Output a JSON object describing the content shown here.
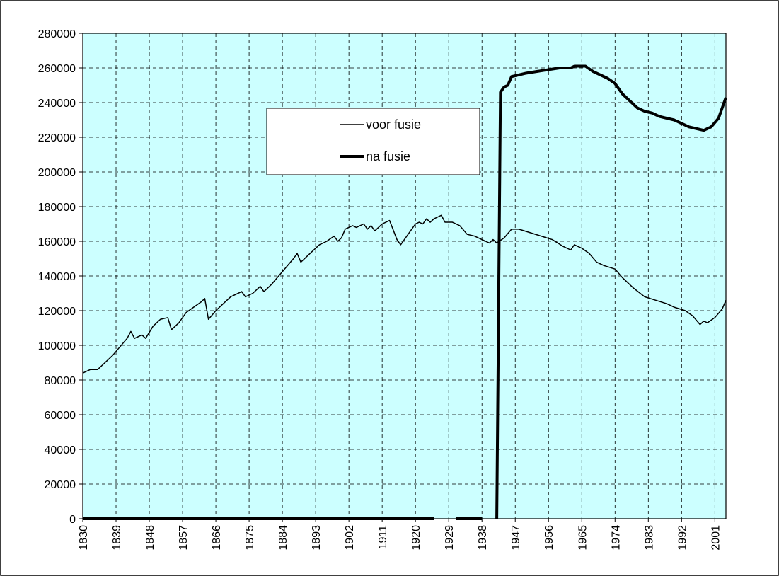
{
  "chart_data": {
    "type": "line",
    "xlim": [
      1830,
      2004
    ],
    "xticks": [
      1830,
      1839,
      1848,
      1857,
      1866,
      1875,
      1884,
      1893,
      1902,
      1911,
      1920,
      1929,
      1938,
      1947,
      1956,
      1965,
      1974,
      1983,
      1992,
      2001
    ],
    "ylim": [
      0,
      280000
    ],
    "yticks": [
      0,
      20000,
      40000,
      60000,
      80000,
      100000,
      120000,
      140000,
      160000,
      180000,
      200000,
      220000,
      240000,
      260000,
      280000
    ],
    "grid": true,
    "background": "#ccffff",
    "legend": "upper-center",
    "series": [
      {
        "name": "voor fusie",
        "color": "#000000",
        "linewidth": 1.5,
        "x": [
          1830,
          1832,
          1834,
          1836,
          1838,
          1840,
          1842,
          1843,
          1844,
          1846,
          1847,
          1849,
          1851,
          1853,
          1854,
          1856,
          1858,
          1860,
          1862,
          1863,
          1864,
          1866,
          1868,
          1870,
          1873,
          1874,
          1876,
          1878,
          1879,
          1881,
          1883,
          1885,
          1887,
          1888,
          1889,
          1891,
          1894,
          1896,
          1898,
          1899,
          1900,
          1901,
          1903,
          1904,
          1906,
          1907,
          1908,
          1909,
          1910,
          1911,
          1913,
          1915,
          1916,
          1918,
          1920,
          1921,
          1922,
          1923,
          1924,
          1925,
          1927,
          1928,
          1930,
          1932,
          1934,
          1936,
          1938,
          1940,
          1941,
          1942,
          1944,
          1946,
          1948,
          1951,
          1954,
          1957,
          1960,
          1962,
          1963,
          1965,
          1967,
          1969,
          1971,
          1974,
          1976,
          1979,
          1982,
          1985,
          1988,
          1990,
          1993,
          1995,
          1997,
          1998,
          1999,
          2001,
          2003,
          2004
        ],
        "values": [
          84000,
          86000,
          86000,
          90000,
          94000,
          99000,
          104000,
          108000,
          104000,
          106000,
          104000,
          111000,
          115000,
          116000,
          109000,
          113000,
          119000,
          122000,
          125000,
          127000,
          115000,
          120000,
          124000,
          128000,
          131000,
          128000,
          130000,
          134000,
          131000,
          135000,
          140000,
          145000,
          150000,
          153000,
          148000,
          152000,
          158000,
          160000,
          163000,
          160000,
          162000,
          167000,
          169000,
          168000,
          170000,
          167000,
          169000,
          166000,
          168000,
          170000,
          172000,
          161000,
          158000,
          164000,
          170000,
          171000,
          170000,
          173000,
          171000,
          173000,
          175000,
          171000,
          171000,
          169000,
          164000,
          163000,
          161000,
          159000,
          161000,
          159000,
          162000,
          167000,
          167000,
          165000,
          163000,
          161000,
          157000,
          155000,
          158000,
          156000,
          153000,
          148000,
          146000,
          144000,
          139000,
          133000,
          128000,
          126000,
          124000,
          122000,
          120000,
          117000,
          112000,
          114000,
          113000,
          116000,
          121000,
          126000
        ]
      },
      {
        "name": "na fusie",
        "color": "#000000",
        "linewidth": 4,
        "x": [
          1830,
          1925,
          1926,
          1931,
          1938,
          1939,
          1942,
          1943,
          1944,
          1945,
          1946,
          1948,
          1950,
          1953,
          1956,
          1959,
          1962,
          1963,
          1966,
          1968,
          1970,
          1972,
          1974,
          1976,
          1978,
          1980,
          1982,
          1984,
          1986,
          1988,
          1990,
          1992,
          1994,
          1996,
          1998,
          2000,
          2002,
          2004
        ],
        "values": [
          0,
          0,
          null,
          0,
          0,
          null,
          0,
          246000,
          249000,
          250000,
          255000,
          256000,
          257000,
          258000,
          259000,
          260000,
          260000,
          261000,
          261000,
          258000,
          256000,
          254000,
          251000,
          245000,
          241000,
          237000,
          235000,
          234000,
          232000,
          231000,
          230000,
          228000,
          226000,
          225000,
          224000,
          226000,
          231000,
          243000
        ]
      }
    ]
  }
}
